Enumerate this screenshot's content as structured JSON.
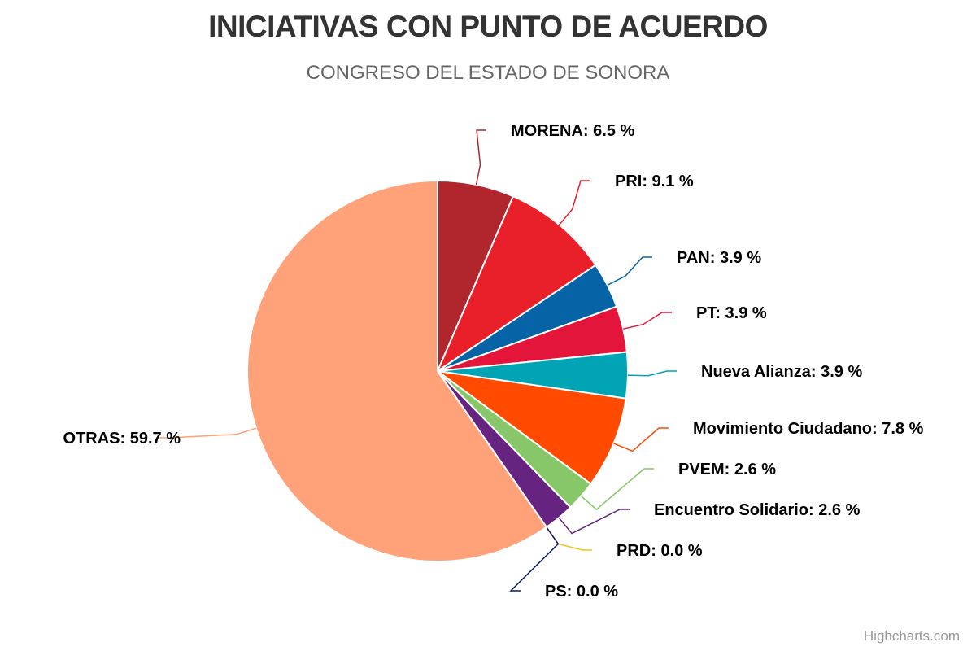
{
  "chart_data": {
    "type": "pie",
    "title": "INICIATIVAS CON PUNTO DE ACUERDO",
    "subtitle": "CONGRESO DEL ESTADO DE SONORA",
    "unit": "%",
    "slices": [
      {
        "name": "MORENA",
        "value": 6.5,
        "label": "MORENA: 6.5 %",
        "color": "#B0262C"
      },
      {
        "name": "PRI",
        "value": 9.1,
        "label": "PRI: 9.1 %",
        "color": "#E91F29"
      },
      {
        "name": "PAN",
        "value": 3.9,
        "label": "PAN: 3.9 %",
        "color": "#0563A6"
      },
      {
        "name": "PT",
        "value": 3.9,
        "label": "PT: 3.9 %",
        "color": "#E3153A"
      },
      {
        "name": "Nueva Alianza",
        "value": 3.9,
        "label": "Nueva Alianza: 3.9 %",
        "color": "#00A4B5"
      },
      {
        "name": "Movimiento Ciudadano",
        "value": 7.8,
        "label": "Movimiento Ciudadano: 7.8 %",
        "color": "#FF4A00"
      },
      {
        "name": "PVEM",
        "value": 2.6,
        "label": "PVEM: 2.6 %",
        "color": "#87C76A"
      },
      {
        "name": "Encuentro Solidario",
        "value": 2.6,
        "label": "Encuentro Solidario: 2.6 %",
        "color": "#662480"
      },
      {
        "name": "PRD",
        "value": 0.0,
        "label": "PRD: 0.0 %",
        "color": "#F2C221"
      },
      {
        "name": "PS",
        "value": 0.0,
        "label": "PS: 0.0 %",
        "color": "#0C1A6E"
      },
      {
        "name": "OTRAS",
        "value": 59.7,
        "label": "OTRAS: 59.7 %",
        "color": "#FFA27A"
      }
    ]
  },
  "credits": "Highcharts.com"
}
